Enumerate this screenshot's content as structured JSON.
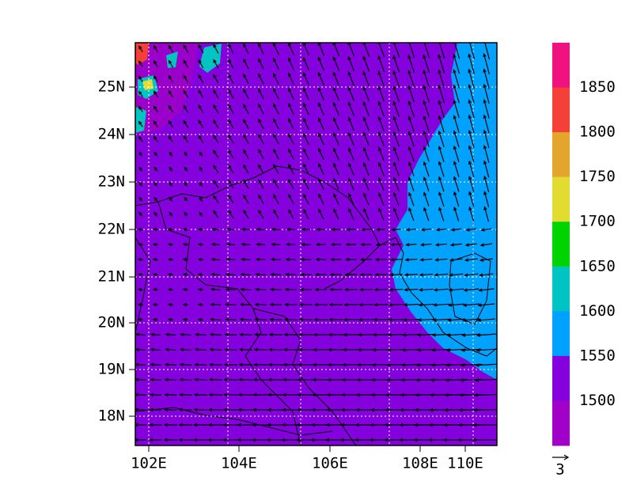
{
  "map": {
    "lat_labels": [
      "25N",
      "24N",
      "23N",
      "22N",
      "21N",
      "20N",
      "19N",
      "18N"
    ],
    "lon_labels": [
      "102E",
      "104E",
      "106E",
      "108E",
      "110E"
    ],
    "colorbar": {
      "levels": [
        1850,
        1800,
        1750,
        1700,
        1650,
        1600,
        1550,
        1500
      ],
      "colors": [
        "#f0127f",
        "#f5403a",
        "#e4a52c",
        "#e2dc30",
        "#00d400",
        "#00c4c4",
        "#00a2ff",
        "#8400dc",
        "#a100c9"
      ]
    },
    "reference_vector": "3"
  }
}
